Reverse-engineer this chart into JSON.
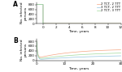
{
  "panel_A": {
    "title": "A",
    "xlabel": "Time, years",
    "ylabel": "No. infected\npersons",
    "xlim": [
      -1,
      12
    ],
    "ylim": [
      0,
      900
    ],
    "xticks": [
      0,
      2,
      4,
      6,
      8,
      10,
      12
    ],
    "yticks": [
      0,
      200,
      400,
      600,
      800
    ],
    "strategies": [
      {
        "label": "2 TCT, 2 TTT",
        "color": "#f4a582"
      },
      {
        "label": "3 TCT, 2 TTT",
        "color": "#92c5de"
      },
      {
        "label": "2 TCT, 3 TTT",
        "color": "#a1d99b"
      }
    ]
  },
  "panel_B": {
    "title": "B",
    "xlabel": "Time, years",
    "ylabel": "No. infected\npersons",
    "xlim": [
      0,
      30
    ],
    "ylim": [
      0,
      900
    ],
    "xticks": [
      0,
      10,
      20,
      30
    ],
    "yticks": [
      0,
      200,
      400,
      600,
      800
    ],
    "strategies": [
      {
        "label": "2 TCT, 2 TTT",
        "color": "#f4a582"
      },
      {
        "label": "3 TCT, 2 TTT",
        "color": "#92c5de"
      },
      {
        "label": "2 TCT, 3 TTT",
        "color": "#a1d99b"
      }
    ]
  },
  "background_color": "#ffffff",
  "legend_fontsize": 2.8,
  "axis_fontsize": 3.0,
  "label_fontsize": 3.2,
  "title_fontsize": 5.5,
  "linewidth": 0.5
}
